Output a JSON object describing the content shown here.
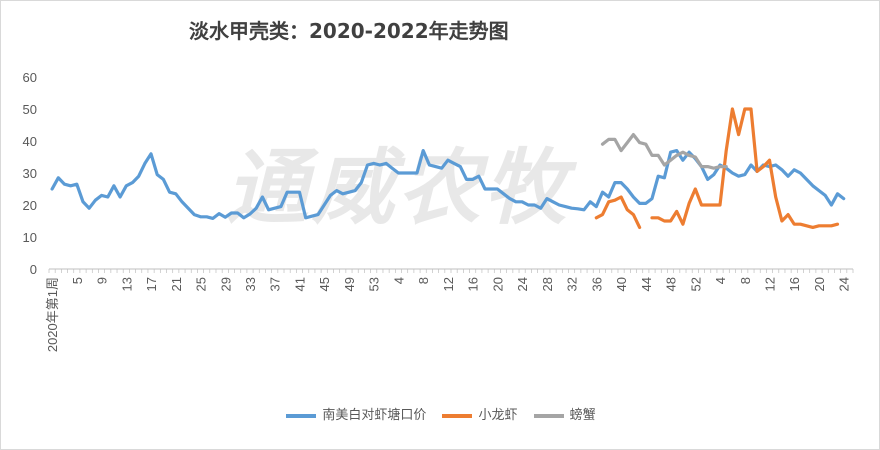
{
  "chart_data": {
    "type": "line",
    "title": "淡水甲壳类：2020-2022年走势图",
    "watermark": "通威农牧",
    "ylim": [
      0,
      60
    ],
    "yticks": [
      0,
      10,
      20,
      30,
      40,
      50,
      60
    ],
    "xlabels": [
      {
        "i": 0,
        "text": "2020年第1周"
      },
      {
        "i": 4,
        "text": "5"
      },
      {
        "i": 8,
        "text": "9"
      },
      {
        "i": 12,
        "text": "13"
      },
      {
        "i": 16,
        "text": "17"
      },
      {
        "i": 20,
        "text": "21"
      },
      {
        "i": 24,
        "text": "25"
      },
      {
        "i": 28,
        "text": "29"
      },
      {
        "i": 32,
        "text": "33"
      },
      {
        "i": 36,
        "text": "37"
      },
      {
        "i": 40,
        "text": "41"
      },
      {
        "i": 44,
        "text": "45"
      },
      {
        "i": 48,
        "text": "49"
      },
      {
        "i": 52,
        "text": "53"
      },
      {
        "i": 56,
        "text": "4"
      },
      {
        "i": 60,
        "text": "8"
      },
      {
        "i": 64,
        "text": "12"
      },
      {
        "i": 68,
        "text": "16"
      },
      {
        "i": 72,
        "text": "20"
      },
      {
        "i": 76,
        "text": "24"
      },
      {
        "i": 80,
        "text": "28"
      },
      {
        "i": 84,
        "text": "32"
      },
      {
        "i": 88,
        "text": "36"
      },
      {
        "i": 92,
        "text": "40"
      },
      {
        "i": 96,
        "text": "44"
      },
      {
        "i": 100,
        "text": "48"
      },
      {
        "i": 104,
        "text": "52"
      },
      {
        "i": 108,
        "text": "4"
      },
      {
        "i": 112,
        "text": "8"
      },
      {
        "i": 116,
        "text": "12"
      },
      {
        "i": 120,
        "text": "16"
      },
      {
        "i": 124,
        "text": "20"
      },
      {
        "i": 128,
        "text": "24"
      }
    ],
    "num_points": 130,
    "series": [
      {
        "name": "南美白对虾塘口价",
        "color": "#5b9bd5",
        "points": [
          [
            0,
            25
          ],
          [
            1,
            28.5
          ],
          [
            2,
            26.5
          ],
          [
            3,
            26
          ],
          [
            4,
            26.5
          ],
          [
            5,
            21
          ],
          [
            6,
            19
          ],
          [
            7,
            21.5
          ],
          [
            8,
            23
          ],
          [
            9,
            22.5
          ],
          [
            10,
            26
          ],
          [
            11,
            22.5
          ],
          [
            12,
            26
          ],
          [
            13,
            27
          ],
          [
            14,
            29
          ],
          [
            15,
            33
          ],
          [
            16,
            36
          ],
          [
            17,
            29.5
          ],
          [
            18,
            28
          ],
          [
            19,
            24
          ],
          [
            20,
            23.5
          ],
          [
            21,
            21
          ],
          [
            22,
            19
          ],
          [
            23,
            17
          ],
          [
            24,
            16.3
          ],
          [
            25,
            16.3
          ],
          [
            26,
            15.8
          ],
          [
            27,
            17.3
          ],
          [
            28,
            16.2
          ],
          [
            29,
            17.5
          ],
          [
            30,
            17.5
          ],
          [
            31,
            16
          ],
          [
            32,
            17.2
          ],
          [
            33,
            19
          ],
          [
            34,
            22.5
          ],
          [
            35,
            18.5
          ],
          [
            36,
            19
          ],
          [
            37,
            19.5
          ],
          [
            38,
            24
          ],
          [
            39,
            24
          ],
          [
            40,
            24
          ],
          [
            41,
            16
          ],
          [
            42,
            16.5
          ],
          [
            43,
            17
          ],
          [
            44,
            20
          ],
          [
            45,
            23
          ],
          [
            46,
            24.5
          ],
          [
            47,
            23.5
          ],
          [
            48,
            24
          ],
          [
            49,
            24.5
          ],
          [
            50,
            27
          ],
          [
            51,
            32.5
          ],
          [
            52,
            33
          ],
          [
            53,
            32.5
          ],
          [
            54,
            33
          ],
          [
            55,
            31.5
          ],
          [
            56,
            30
          ],
          [
            57,
            30
          ],
          [
            58,
            30
          ],
          [
            59,
            30
          ],
          [
            60,
            37
          ],
          [
            61,
            32.5
          ],
          [
            62,
            32
          ],
          [
            63,
            31.5
          ],
          [
            64,
            34
          ],
          [
            65,
            33
          ],
          [
            66,
            32
          ],
          [
            67,
            28
          ],
          [
            68,
            28
          ],
          [
            69,
            29
          ],
          [
            70,
            25
          ],
          [
            71,
            25
          ],
          [
            72,
            25
          ],
          [
            73,
            23.5
          ],
          [
            74,
            22
          ],
          [
            75,
            21
          ],
          [
            76,
            21
          ],
          [
            77,
            20
          ],
          [
            78,
            20
          ],
          [
            79,
            19
          ],
          [
            80,
            22
          ],
          [
            81,
            21
          ],
          [
            82,
            20
          ],
          [
            83,
            19.5
          ],
          [
            84,
            19
          ],
          [
            85,
            18.8
          ],
          [
            86,
            18.5
          ],
          [
            87,
            21
          ],
          [
            88,
            19.5
          ],
          [
            89,
            24
          ],
          [
            90,
            22.5
          ],
          [
            91,
            27
          ],
          [
            92,
            27
          ],
          [
            93,
            25
          ],
          [
            94,
            22.5
          ],
          [
            95,
            20.5
          ],
          [
            96,
            20.5
          ],
          [
            97,
            22
          ],
          [
            98,
            29
          ],
          [
            99,
            28.5
          ],
          [
            100,
            36.5
          ],
          [
            101,
            37
          ],
          [
            102,
            34
          ],
          [
            103,
            36.5
          ],
          [
            104,
            34.5
          ],
          [
            105,
            32
          ],
          [
            106,
            28
          ],
          [
            107,
            29.5
          ],
          [
            108,
            32.5
          ],
          [
            109,
            31.5
          ],
          [
            110,
            30
          ],
          [
            111,
            29
          ],
          [
            112,
            29.5
          ],
          [
            113,
            32.5
          ],
          [
            114,
            30.5
          ],
          [
            115,
            32.5
          ],
          [
            116,
            32
          ],
          [
            117,
            32.5
          ],
          [
            118,
            31
          ],
          [
            119,
            29
          ],
          [
            120,
            31
          ],
          [
            121,
            30
          ],
          [
            122,
            28
          ],
          [
            123,
            26
          ],
          [
            124,
            24.5
          ],
          [
            125,
            23
          ],
          [
            126,
            20
          ],
          [
            127,
            23.5
          ],
          [
            128,
            22
          ]
        ]
      },
      {
        "name": "小龙虾",
        "color": "#ed7d31",
        "segments": [
          [
            [
              88,
              16
            ],
            [
              89,
              17
            ],
            [
              90,
              21
            ],
            [
              91,
              21.5
            ],
            [
              92,
              22.5
            ],
            [
              93,
              18.5
            ],
            [
              94,
              17
            ],
            [
              95,
              13
            ]
          ],
          [
            [
              97,
              16
            ],
            [
              98,
              16
            ],
            [
              99,
              15
            ],
            [
              100,
              15
            ],
            [
              101,
              18
            ],
            [
              102,
              14
            ],
            [
              103,
              20.5
            ],
            [
              104,
              25
            ],
            [
              105,
              20
            ],
            [
              106,
              20
            ],
            [
              107,
              20
            ],
            [
              108,
              20
            ],
            [
              109,
              37
            ],
            [
              110,
              50
            ],
            [
              111,
              42
            ],
            [
              112,
              50
            ],
            [
              113,
              50
            ],
            [
              114,
              30.5
            ],
            [
              115,
              32
            ],
            [
              116,
              34
            ],
            [
              117,
              22.5
            ],
            [
              118,
              15
            ],
            [
              119,
              17
            ],
            [
              120,
              14
            ],
            [
              121,
              14
            ],
            [
              122,
              13.5
            ],
            [
              123,
              13
            ],
            [
              124,
              13.5
            ],
            [
              125,
              13.5
            ],
            [
              126,
              13.5
            ],
            [
              127,
              14
            ]
          ]
        ]
      },
      {
        "name": "螃蟹",
        "color": "#a5a5a5",
        "segments": [
          [
            [
              89,
              39
            ],
            [
              90,
              40.5
            ],
            [
              91,
              40.5
            ],
            [
              92,
              37
            ],
            [
              93,
              39.5
            ],
            [
              94,
              42
            ],
            [
              95,
              39.5
            ],
            [
              96,
              39
            ],
            [
              97,
              35.5
            ],
            [
              98,
              35.5
            ],
            [
              99,
              32.5
            ],
            [
              100,
              34
            ],
            [
              101,
              35.5
            ],
            [
              102,
              36.5
            ],
            [
              103,
              35.5
            ],
            [
              104,
              35
            ],
            [
              105,
              32
            ],
            [
              106,
              32
            ],
            [
              107,
              31.5
            ],
            [
              108,
              32
            ],
            [
              109,
              32
            ]
          ]
        ]
      }
    ]
  }
}
